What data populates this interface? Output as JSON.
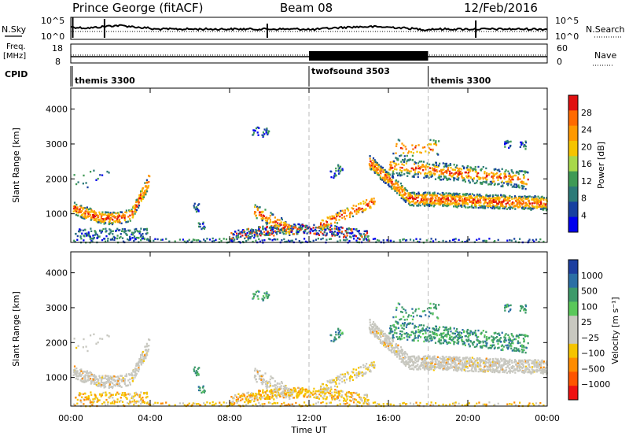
{
  "header": {
    "station": "Prince George (fitACF)",
    "beam": "Beam 08",
    "date": "12/Feb/2016"
  },
  "side_labels": {
    "nsky": "N.Sky",
    "freq_line1": "Freq.",
    "freq_line2": "[MHz]",
    "cpid": "CPID",
    "nsearch": "N.Search",
    "nave": "Nave"
  },
  "top_panel": {
    "left_ticks": [
      "10^5",
      "10^0"
    ],
    "right_ticks": [
      "10^5",
      "10^0"
    ]
  },
  "freq_panel": {
    "left_ticks": [
      "18",
      "8"
    ],
    "right_ticks": [
      "60",
      "0"
    ]
  },
  "cpid_segments": [
    {
      "label": "themis 3300",
      "start_hour": 0
    },
    {
      "label": "twofsound 3503",
      "start_hour": 12
    },
    {
      "label": "themis 3300",
      "start_hour": 18
    }
  ],
  "chart_data": [
    {
      "type": "heatmap",
      "ylabel": "Slant Range [km]",
      "yticks": [
        1000,
        2000,
        3000,
        4000
      ],
      "ylim": [
        180,
        4600
      ],
      "xlim": [
        0,
        24
      ],
      "colorbar": {
        "label": "Power [dB]",
        "ticks": [
          "28",
          "24",
          "20",
          "16",
          "12",
          "8",
          "4"
        ],
        "colors": [
          "#e01010",
          "#ff6a00",
          "#ff9900",
          "#f5c400",
          "#a8d84a",
          "#3f9a55",
          "#2c7a78",
          "#1740a0",
          "#0000ee"
        ]
      }
    },
    {
      "type": "heatmap",
      "ylabel": "Slant Range [km]",
      "yticks": [
        1000,
        2000,
        3000,
        4000
      ],
      "ylim": [
        180,
        4600
      ],
      "xlim": [
        0,
        24
      ],
      "colorbar": {
        "label": "Velocity [m s⁻¹]",
        "ticks": [
          "1000",
          "500",
          "100",
          "25",
          "−25",
          "−100",
          "−500",
          "−1000"
        ],
        "colors": [
          "#1d3fa0",
          "#2b6fa5",
          "#3d9a6a",
          "#5ac85a",
          "#c8c8c0",
          "#c8c8c0",
          "#f5c400",
          "#ff8c00",
          "#ff5500",
          "#ee1111"
        ]
      }
    }
  ],
  "x_axis": {
    "ticks": [
      "00:00",
      "04:00",
      "08:00",
      "12:00",
      "16:00",
      "20:00",
      "00:00"
    ],
    "label": "Time UT"
  }
}
